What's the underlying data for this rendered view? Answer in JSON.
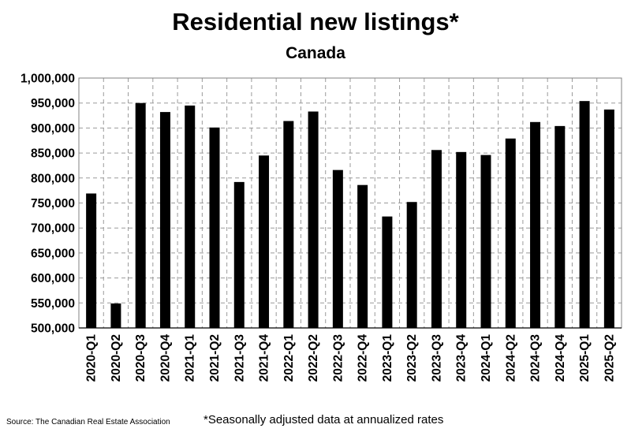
{
  "chart_data": {
    "type": "bar",
    "title": "Residential new listings*",
    "subtitle": "Canada",
    "xlabel": "",
    "ylabel": "",
    "categories": [
      "2020-Q1",
      "2020-Q2",
      "2020-Q3",
      "2020-Q4",
      "2021-Q1",
      "2021-Q2",
      "2021-Q3",
      "2021-Q4",
      "2022-Q1",
      "2022-Q2",
      "2022-Q3",
      "2022-Q4",
      "2023-Q1",
      "2023-Q2",
      "2023-Q3",
      "2023-Q4",
      "2024-Q1",
      "2024-Q2",
      "2024-Q3",
      "2024-Q4",
      "2025-Q1",
      "2025-Q2"
    ],
    "values": [
      769000,
      549000,
      950000,
      932000,
      945000,
      901000,
      792000,
      845000,
      914000,
      933000,
      816000,
      786000,
      723000,
      752000,
      856000,
      852000,
      846000,
      879000,
      912000,
      904000,
      954000,
      937000
    ],
    "ylim": [
      500000,
      1000000
    ],
    "yticks": [
      500000,
      550000,
      600000,
      650000,
      700000,
      750000,
      800000,
      850000,
      900000,
      950000,
      1000000
    ],
    "ytick_labels": [
      "500,000",
      "550,000",
      "600,000",
      "650,000",
      "700,000",
      "750,000",
      "800,000",
      "850,000",
      "900,000",
      "950,000",
      "1,000,000"
    ],
    "grid": true,
    "bar_color": "#000000"
  },
  "source": "Source: The Canadian Real Estate Association",
  "footnote": "*Seasonally adjusted data at annualized rates"
}
